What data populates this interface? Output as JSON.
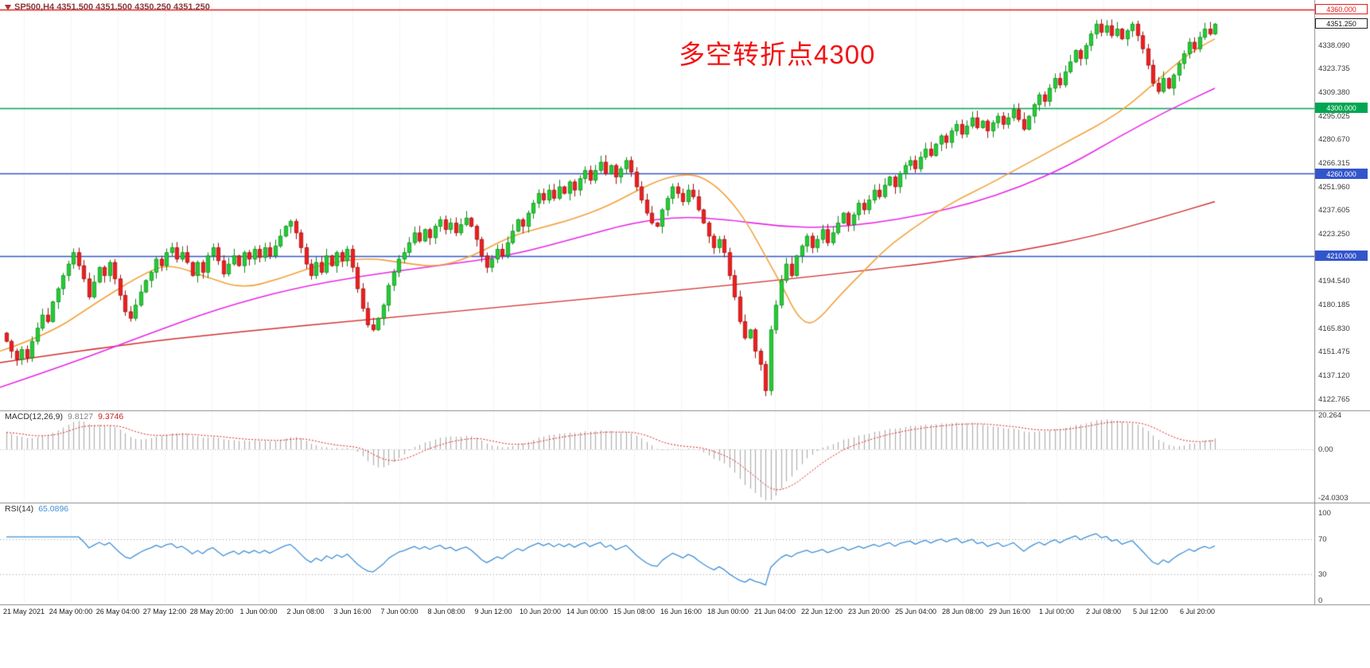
{
  "app": {
    "bg": "#ffffff"
  },
  "symbol_bar": {
    "text": "SP500,H4 4351.500 4351.500 4350.250 4351.250",
    "color": "#8b3a3a"
  },
  "annotation": {
    "text": "多空转折点4300",
    "color": "#f21414"
  },
  "current_price": {
    "label": "4351.250",
    "value": 4351.25
  },
  "hlines": [
    {
      "value": 4360.0,
      "label": "4360.000",
      "color": "#e21b1b",
      "badge_style": "outline-red"
    },
    {
      "value": 4300.0,
      "label": "4300.000",
      "color": "#00a651",
      "badge_style": "fill-green"
    },
    {
      "value": 4260.0,
      "label": "4260.000",
      "color": "#3355cc",
      "badge_style": "fill-blue"
    },
    {
      "value": 4210.0,
      "label": "4210.000",
      "color": "#3355cc",
      "badge_style": "fill-blue"
    }
  ],
  "price_axis": {
    "tick_labels": [
      "4338.090",
      "4323.735",
      "4309.380",
      "4295.025",
      "4280.670",
      "4266.315",
      "4251.960",
      "4237.605",
      "4223.250",
      "4208.895",
      "4194.540",
      "4180.185",
      "4165.830",
      "4151.475",
      "4137.120",
      "4122.765"
    ]
  },
  "time_axis": {
    "tick_labels": [
      "21 May 2021",
      "24 May 00:00",
      "26 May 04:00",
      "27 May 12:00",
      "28 May 20:00",
      "1 Jun 00:00",
      "2 Jun 08:00",
      "3 Jun 16:00",
      "7 Jun 00:00",
      "8 Jun 08:00",
      "9 Jun 12:00",
      "10 Jun 20:00",
      "14 Jun 00:00",
      "15 Jun 08:00",
      "16 Jun 16:00",
      "18 Jun 00:00",
      "21 Jun 04:00",
      "22 Jun 12:00",
      "23 Jun 20:00",
      "25 Jun 04:00",
      "28 Jun 08:00",
      "29 Jun 16:00",
      "1 Jul 00:00",
      "2 Jul 08:00",
      "5 Jul 12:00",
      "6 Jul 20:00"
    ]
  },
  "macd_panel": {
    "name": "MACD(12,26,9)",
    "value_main": "9.8127",
    "value_signal": "9.3746",
    "scale_labels": [
      "20.264",
      "0.00",
      "-24.0303"
    ],
    "scale_values": [
      20.264,
      0,
      -24.0303
    ]
  },
  "rsi_panel": {
    "name": "RSI(14)",
    "value": "65.0896",
    "scale_labels": [
      "100",
      "70",
      "30",
      "0"
    ],
    "scale_values": [
      100,
      70,
      30,
      0
    ],
    "guide_levels": [
      70,
      30
    ]
  },
  "chart_data": {
    "type": "candlestick",
    "symbol": "SP500",
    "timeframe": "H4",
    "ohlc_header": [
      4351.5,
      4351.5,
      4350.25,
      4351.25
    ],
    "horizontal_levels": [
      4360,
      4300,
      4260,
      4210
    ],
    "current_price": 4351.25,
    "x_range": [
      "21 May 2021",
      "7 Jul 2021"
    ],
    "y_axis_step": 14.355,
    "closes": [
      4158,
      4152,
      4147,
      4153,
      4148,
      4158,
      4166,
      4174,
      4170,
      4182,
      4190,
      4198,
      4205,
      4212,
      4204,
      4196,
      4185,
      4194,
      4203,
      4198,
      4206,
      4196,
      4186,
      4176,
      4172,
      4180,
      4188,
      4195,
      4200,
      4208,
      4204,
      4212,
      4215,
      4208,
      4212,
      4206,
      4198,
      4206,
      4200,
      4210,
      4215,
      4207,
      4199,
      4205,
      4210,
      4204,
      4212,
      4208,
      4214,
      4209,
      4215,
      4210,
      4216,
      4222,
      4228,
      4231,
      4224,
      4215,
      4205,
      4198,
      4206,
      4200,
      4210,
      4204,
      4212,
      4207,
      4214,
      4203,
      4190,
      4178,
      4168,
      4165,
      4172,
      4180,
      4192,
      4200,
      4208,
      4212,
      4218,
      4224,
      4219,
      4226,
      4221,
      4228,
      4232,
      4226,
      4230,
      4224,
      4229,
      4233,
      4228,
      4220,
      4210,
      4203,
      4208,
      4214,
      4210,
      4218,
      4225,
      4232,
      4228,
      4236,
      4242,
      4248,
      4244,
      4250,
      4245,
      4252,
      4248,
      4255,
      4250,
      4257,
      4262,
      4256,
      4262,
      4267,
      4260,
      4265,
      4258,
      4263,
      4268,
      4261,
      4252,
      4244,
      4236,
      4230,
      4228,
      4238,
      4245,
      4252,
      4248,
      4243,
      4250,
      4246,
      4238,
      4230,
      4222,
      4215,
      4220,
      4212,
      4198,
      4185,
      4170,
      4160,
      4165,
      4152,
      4144,
      4128,
      4165,
      4180,
      4195,
      4205,
      4198,
      4210,
      4216,
      4222,
      4215,
      4220,
      4226,
      4218,
      4224,
      4230,
      4236,
      4229,
      4235,
      4242,
      4238,
      4244,
      4250,
      4246,
      4253,
      4258,
      4252,
      4260,
      4265,
      4268,
      4263,
      4270,
      4275,
      4271,
      4278,
      4283,
      4279,
      4286,
      4290,
      4284,
      4289,
      4294,
      4288,
      4292,
      4286,
      4291,
      4295,
      4290,
      4294,
      4299,
      4293,
      4287,
      4295,
      4302,
      4308,
      4304,
      4312,
      4318,
      4314,
      4322,
      4328,
      4335,
      4330,
      4338,
      4345,
      4351,
      4346,
      4350,
      4344,
      4348,
      4342,
      4347,
      4351,
      4344,
      4336,
      4326,
      4315,
      4310,
      4318,
      4312,
      4320,
      4327,
      4333,
      4340,
      4336,
      4343,
      4348,
      4345,
      4351
    ],
    "moving_averages": [
      {
        "name": "ma-fast",
        "color": "#f2a33c",
        "points": [
          [
            0,
            4152
          ],
          [
            0.04,
            4162
          ],
          [
            0.08,
            4182
          ],
          [
            0.12,
            4200
          ],
          [
            0.14,
            4205
          ],
          [
            0.17,
            4197
          ],
          [
            0.2,
            4190
          ],
          [
            0.23,
            4196
          ],
          [
            0.26,
            4204
          ],
          [
            0.3,
            4209
          ],
          [
            0.33,
            4206
          ],
          [
            0.36,
            4203
          ],
          [
            0.39,
            4210
          ],
          [
            0.42,
            4222
          ],
          [
            0.45,
            4228
          ],
          [
            0.47,
            4232
          ],
          [
            0.5,
            4240
          ],
          [
            0.53,
            4252
          ],
          [
            0.55,
            4258
          ],
          [
            0.57,
            4260
          ],
          [
            0.585,
            4255
          ],
          [
            0.6,
            4245
          ],
          [
            0.615,
            4230
          ],
          [
            0.63,
            4210
          ],
          [
            0.645,
            4190
          ],
          [
            0.655,
            4175
          ],
          [
            0.665,
            4168
          ],
          [
            0.675,
            4172
          ],
          [
            0.69,
            4185
          ],
          [
            0.71,
            4200
          ],
          [
            0.73,
            4215
          ],
          [
            0.75,
            4226
          ],
          [
            0.77,
            4236
          ],
          [
            0.79,
            4245
          ],
          [
            0.81,
            4252
          ],
          [
            0.83,
            4260
          ],
          [
            0.85,
            4268
          ],
          [
            0.87,
            4276
          ],
          [
            0.89,
            4284
          ],
          [
            0.91,
            4292
          ],
          [
            0.93,
            4302
          ],
          [
            0.95,
            4315
          ],
          [
            0.97,
            4328
          ],
          [
            0.985,
            4336
          ],
          [
            1,
            4342
          ]
        ]
      },
      {
        "name": "ma-mid",
        "color": "#e828e8",
        "points": [
          [
            0,
            4130
          ],
          [
            0.06,
            4145
          ],
          [
            0.12,
            4162
          ],
          [
            0.18,
            4178
          ],
          [
            0.24,
            4190
          ],
          [
            0.3,
            4198
          ],
          [
            0.36,
            4204
          ],
          [
            0.42,
            4210
          ],
          [
            0.48,
            4222
          ],
          [
            0.52,
            4230
          ],
          [
            0.56,
            4234
          ],
          [
            0.6,
            4232
          ],
          [
            0.64,
            4228
          ],
          [
            0.68,
            4227
          ],
          [
            0.72,
            4230
          ],
          [
            0.76,
            4235
          ],
          [
            0.8,
            4242
          ],
          [
            0.84,
            4252
          ],
          [
            0.88,
            4265
          ],
          [
            0.92,
            4282
          ],
          [
            0.96,
            4298
          ],
          [
            1,
            4312
          ]
        ]
      },
      {
        "name": "ma-slow",
        "color": "#d32f2f",
        "points": [
          [
            0,
            4145
          ],
          [
            0.1,
            4156
          ],
          [
            0.2,
            4164
          ],
          [
            0.3,
            4171
          ],
          [
            0.4,
            4178
          ],
          [
            0.5,
            4185
          ],
          [
            0.6,
            4192
          ],
          [
            0.7,
            4200
          ],
          [
            0.78,
            4207
          ],
          [
            0.84,
            4213
          ],
          [
            0.9,
            4222
          ],
          [
            0.95,
            4232
          ],
          [
            1,
            4243
          ]
        ]
      }
    ],
    "indicators": {
      "macd": {
        "fast": 12,
        "slow": 26,
        "signal": 9,
        "current": [
          9.8127,
          9.3746
        ],
        "scale": [
          -24.0303,
          20.264
        ]
      },
      "rsi": {
        "period": 14,
        "current": 65.0896,
        "scale": [
          0,
          100
        ],
        "guides": [
          70,
          30
        ]
      }
    }
  },
  "candle_colors": {
    "up_fill": "#22cc33",
    "up_stroke": "#0b8a18",
    "down_fill": "#ef1d1d",
    "down_stroke": "#9d0f0f",
    "hist": "#b0b0b0",
    "signal": "#dd2222",
    "rsi_line": "#3f90d8"
  }
}
